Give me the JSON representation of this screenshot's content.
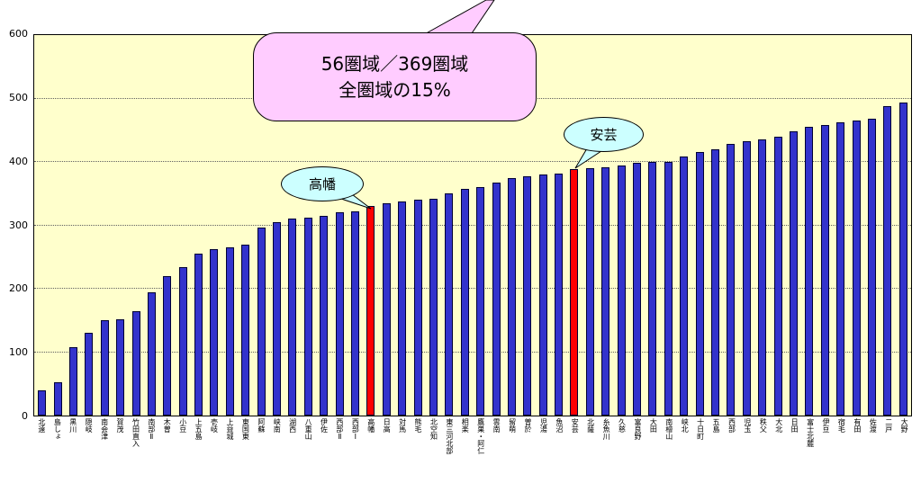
{
  "chart_data": {
    "type": "bar",
    "title": "",
    "xlabel": "",
    "ylabel": "",
    "ylim": [
      0,
      600
    ],
    "yticks": [
      0,
      100,
      200,
      300,
      400,
      500,
      600
    ],
    "grid": true,
    "plot_bg": "#FFFFCC",
    "bar_color": "#3333CC",
    "categories": [
      "北遠",
      "島しょ",
      "黒川",
      "隠岐",
      "南会津",
      "賀茂",
      "竹田直入",
      "南部Ⅱ",
      "木曽",
      "小豆",
      "上五島",
      "壱岐",
      "上益城",
      "東国東",
      "阿蘇",
      "峡南",
      "湖西",
      "八重山",
      "伊佐",
      "西部Ⅱ",
      "西部Ⅰ",
      "高幡",
      "日高",
      "対馬",
      "熊毛",
      "北空知",
      "東三河北部",
      "相楽",
      "鷹巣・阿仁",
      "雲南",
      "留萌",
      "曽於",
      "児湯",
      "魚沼",
      "安芸",
      "北薩",
      "糸魚川",
      "久慈",
      "富良野",
      "大田",
      "南檜山",
      "峡北",
      "十日町",
      "五島",
      "西部",
      "児玉",
      "秩父",
      "大北",
      "日田",
      "富士北麓",
      "伊豆",
      "宿毛",
      "有田",
      "佐渡",
      "二戸",
      "大野"
    ],
    "values": [
      40,
      52,
      108,
      130,
      150,
      152,
      165,
      195,
      220,
      234,
      255,
      262,
      265,
      270,
      297,
      305,
      310,
      312,
      315,
      320,
      322,
      330,
      335,
      338,
      340,
      342,
      350,
      357,
      360,
      367,
      375,
      377,
      380,
      382,
      388,
      390,
      392,
      395,
      398,
      400,
      400,
      408,
      415,
      420,
      428,
      432,
      436,
      440,
      448,
      455,
      458,
      462,
      465,
      468,
      488,
      493
    ],
    "highlight": {
      "indices": [
        21,
        34
      ],
      "color": "#FF0000",
      "labels": [
        "高幡",
        "安芸"
      ]
    }
  },
  "callouts": {
    "summary": {
      "line1": "56圏域／369圏域",
      "line2": "全圏域の15%",
      "fill": "#FFCCFF"
    },
    "takahata": {
      "label": "高幡",
      "fill": "#CCFFFF"
    },
    "aki": {
      "label": "安芸",
      "fill": "#CCFFFF"
    }
  }
}
